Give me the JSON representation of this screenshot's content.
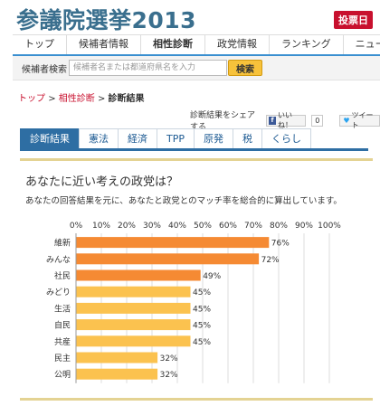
{
  "header": {
    "title": "参議院選挙2013",
    "badge": "投票日"
  },
  "nav": {
    "items": [
      "トップ",
      "候補者情報",
      "相性診断",
      "政党情報",
      "ランキング",
      "ニュー"
    ]
  },
  "search": {
    "label": "候補者検索",
    "placeholder": "候補者名または都道府県名を入力",
    "button": "検索"
  },
  "breadcrumb": {
    "home": "トップ",
    "section": "相性診断",
    "current": "診断結果",
    "separator": ">"
  },
  "share": {
    "text": "診断結果をシェアする",
    "like_label": "いいね！",
    "like_count": "0",
    "tweet_label": "ツイート"
  },
  "tabs": [
    "診断結果",
    "憲法",
    "経済",
    "TPP",
    "原発",
    "税",
    "くらし"
  ],
  "main": {
    "heading": "あなたに近い考えの政党は？",
    "description": "あなたの回答結果を元に、あなたと政党とのマッチ率を総合的に算出しています。"
  },
  "colors": {
    "bar_high": "#f58a33",
    "bar_low": "#fbc24f",
    "tab_active": "#2e6ea3",
    "badge": "#c8102e"
  },
  "chart_data": {
    "type": "bar",
    "orientation": "horizontal",
    "categories": [
      "維新",
      "みんな",
      "社民",
      "みどり",
      "生活",
      "自民",
      "共産",
      "民主",
      "公明"
    ],
    "values": [
      76,
      72,
      49,
      45,
      45,
      45,
      45,
      32,
      32
    ],
    "value_labels": [
      "76%",
      "72%",
      "49%",
      "45%",
      "45%",
      "45%",
      "45%",
      "32%",
      "32%"
    ],
    "xticks": [
      "0%",
      "10%",
      "20%",
      "30%",
      "40%",
      "50%",
      "60%",
      "70%",
      "80%",
      "90%",
      "100%"
    ],
    "xlim": [
      0,
      100
    ],
    "grid": true
  }
}
